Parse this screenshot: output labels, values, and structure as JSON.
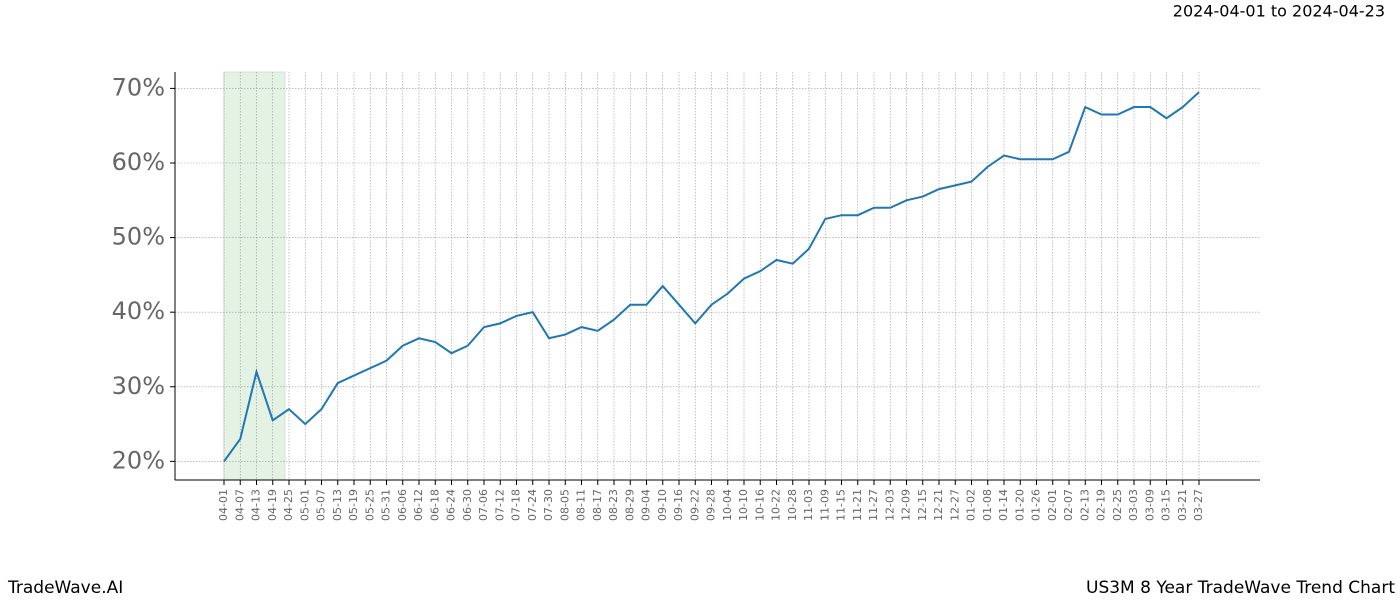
{
  "chart_data": {
    "type": "line",
    "title": "US3M 8 Year TradeWave Trend Chart",
    "subtitle": "2024-04-01 to 2024-04-23",
    "watermark": "TradeWave.AI",
    "categories": [
      "04-01",
      "04-07",
      "04-13",
      "04-19",
      "04-25",
      "05-01",
      "05-07",
      "05-13",
      "05-19",
      "05-25",
      "05-31",
      "06-06",
      "06-12",
      "06-18",
      "06-24",
      "06-30",
      "07-06",
      "07-12",
      "07-18",
      "07-24",
      "07-30",
      "08-05",
      "08-11",
      "08-17",
      "08-23",
      "08-29",
      "09-04",
      "09-10",
      "09-16",
      "09-22",
      "09-28",
      "10-04",
      "10-10",
      "10-16",
      "10-22",
      "10-28",
      "11-03",
      "11-09",
      "11-15",
      "11-21",
      "11-27",
      "12-03",
      "12-09",
      "12-15",
      "12-21",
      "12-27",
      "01-02",
      "01-08",
      "01-14",
      "01-20",
      "01-26",
      "02-01",
      "02-07",
      "02-13",
      "02-19",
      "02-25",
      "03-03",
      "03-09",
      "03-15",
      "03-21",
      "03-27"
    ],
    "series": [
      {
        "name": "US3M",
        "color": "#1f77b4",
        "values": [
          20,
          23,
          32,
          25.5,
          27,
          25,
          27,
          30.5,
          31.5,
          32.5,
          33.5,
          35.5,
          36.5,
          36,
          34.5,
          35.5,
          38,
          38.5,
          39.5,
          40,
          36.5,
          37,
          38,
          37.5,
          39,
          41,
          41,
          43.5,
          41,
          38.5,
          41,
          42.5,
          44.5,
          45.5,
          47,
          46.5,
          48.5,
          52.5,
          53,
          53,
          54,
          54,
          55,
          55.5,
          56.5,
          57,
          57.5,
          59.5,
          61,
          60.5,
          60.5,
          60.5,
          61.5,
          67.5,
          66.5,
          66.5,
          67.5,
          67.5,
          66,
          67.5,
          69.5
        ]
      }
    ],
    "ylim": [
      17.5,
      72.2
    ],
    "yticks": [
      {
        "value": 20,
        "label": "20%"
      },
      {
        "value": 30,
        "label": "30%"
      },
      {
        "value": 40,
        "label": "40%"
      },
      {
        "value": 50,
        "label": "50%"
      },
      {
        "value": 60,
        "label": "60%"
      },
      {
        "value": 70,
        "label": "70%"
      }
    ],
    "grid": true
  }
}
